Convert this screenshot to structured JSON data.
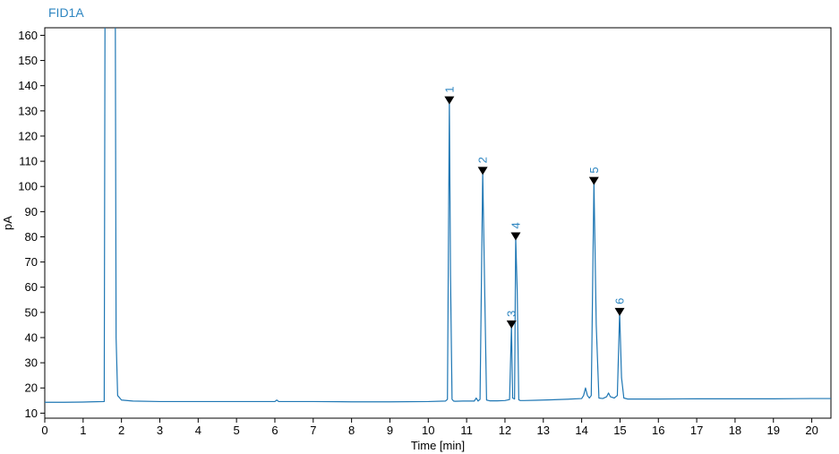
{
  "chart_data": {
    "type": "line",
    "title": "FID1A",
    "xlabel": "Time [min]",
    "ylabel": "pA",
    "xlim": [
      0,
      20.5
    ],
    "ylim": [
      8,
      163
    ],
    "x_ticks": [
      0,
      1,
      2,
      3,
      4,
      5,
      6,
      7,
      8,
      9,
      10,
      11,
      12,
      13,
      14,
      15,
      16,
      17,
      18,
      19,
      20
    ],
    "y_ticks": [
      10,
      20,
      30,
      40,
      50,
      60,
      70,
      80,
      90,
      100,
      110,
      120,
      130,
      140,
      150,
      160
    ],
    "grid": false,
    "series": [
      {
        "x": [
          0,
          0.5,
          1.0,
          1.2,
          1.55,
          1.57,
          1.6,
          1.63,
          1.66,
          1.7,
          1.75,
          1.8,
          1.84,
          1.86,
          1.9,
          2.0,
          2.3,
          3.0,
          4.0,
          5.0,
          5.5,
          6.0,
          6.05,
          6.1,
          7.0,
          8.0,
          9.0,
          10.0,
          10.45,
          10.5,
          10.55,
          10.58,
          10.62,
          10.66,
          10.7,
          10.9,
          11.2,
          11.25,
          11.3,
          11.35,
          11.42,
          11.47,
          11.52,
          11.6,
          11.8,
          12.0,
          12.12,
          12.17,
          12.2,
          12.25,
          12.28,
          12.32,
          12.36,
          12.4,
          12.5,
          12.8,
          13.2,
          13.6,
          14.0,
          14.05,
          14.1,
          14.15,
          14.2,
          14.25,
          14.32,
          14.38,
          14.45,
          14.55,
          14.65,
          14.7,
          14.75,
          14.85,
          14.93,
          14.99,
          15.04,
          15.1,
          15.2,
          16.0,
          17.0,
          18.0,
          19.0,
          20.0,
          20.5
        ],
        "y": [
          14.3,
          14.3,
          14.4,
          14.5,
          14.6,
          164,
          164,
          164,
          164,
          164,
          164,
          164,
          164,
          40,
          17,
          15.2,
          14.8,
          14.6,
          14.6,
          14.6,
          14.6,
          14.6,
          15.2,
          14.6,
          14.6,
          14.5,
          14.5,
          14.6,
          14.8,
          15.5,
          134,
          65,
          15.5,
          14.8,
          14.7,
          14.8,
          14.8,
          16,
          14.8,
          15.5,
          106,
          60,
          15.2,
          14.9,
          14.9,
          15.0,
          15.4,
          45,
          16,
          15.6,
          80,
          58,
          15.3,
          15.0,
          15.0,
          15.1,
          15.3,
          15.5,
          15.8,
          17,
          20,
          17,
          16,
          17,
          102,
          45,
          16,
          15.8,
          16.5,
          18,
          16.5,
          16,
          17,
          50,
          24,
          16,
          15.6,
          15.6,
          15.7,
          15.7,
          15.7,
          15.8,
          15.8
        ]
      }
    ],
    "peaks": [
      {
        "label": "1",
        "x": 10.55,
        "y": 134
      },
      {
        "label": "2",
        "x": 11.42,
        "y": 106
      },
      {
        "label": "3",
        "x": 12.17,
        "y": 45
      },
      {
        "label": "4",
        "x": 12.28,
        "y": 80
      },
      {
        "label": "5",
        "x": 14.32,
        "y": 102
      },
      {
        "label": "6",
        "x": 14.99,
        "y": 50
      }
    ],
    "colors": {
      "line": "#1f77b4",
      "title": "#2e86c1",
      "marker": "#000000",
      "peak_label": "#2e86c1",
      "frame": "#000000"
    }
  }
}
